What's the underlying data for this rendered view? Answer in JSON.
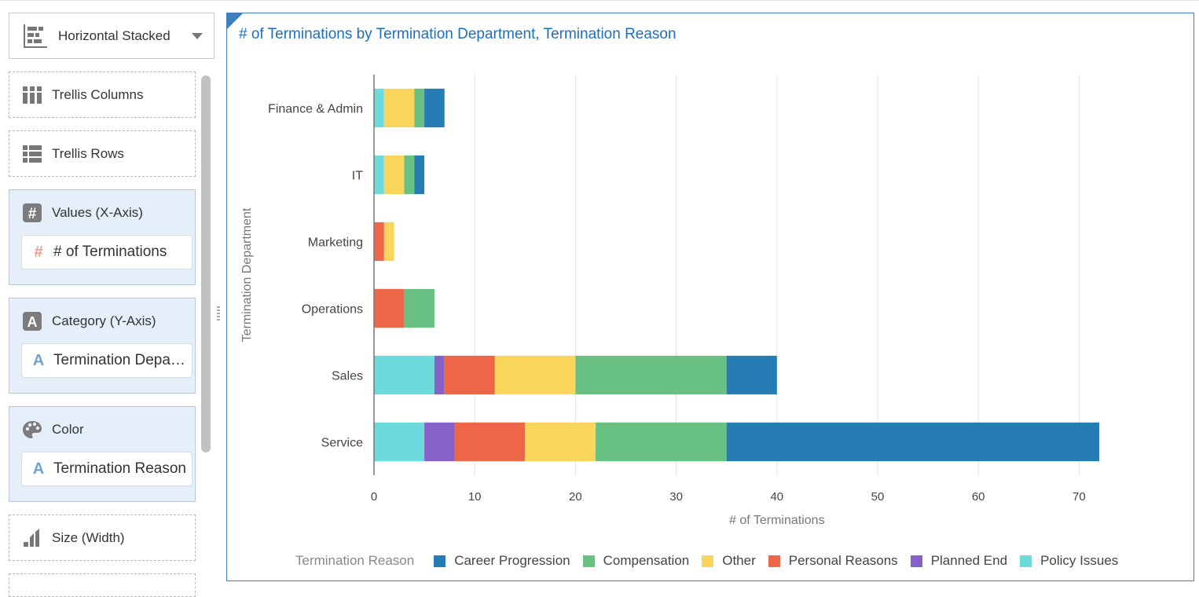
{
  "toolbar": {
    "chart_type_label": "Horizontal Stacked"
  },
  "grammar": {
    "trellis_columns": "Trellis Columns",
    "trellis_rows": "Trellis Rows",
    "values_label": "Values (X-Axis)",
    "values_pill": "# of Terminations",
    "category_label": "Category (Y-Axis)",
    "category_pill": "Termination Department",
    "color_label": "Color",
    "color_pill": "Termination Reason",
    "size_label": "Size (Width)"
  },
  "chart_data": {
    "type": "bar",
    "orientation": "horizontal",
    "stacked": true,
    "title": "# of Terminations by Termination Department, Termination Reason",
    "xlabel": "# of Terminations",
    "ylabel": "Termination Department",
    "xlim": [
      0,
      75
    ],
    "xticks": [
      0,
      10,
      20,
      30,
      40,
      50,
      60,
      70
    ],
    "grid": true,
    "legend_title": "Termination Reason",
    "legend_position": "bottom",
    "categories": [
      "Finance & Admin",
      "IT",
      "Marketing",
      "Operations",
      "Sales",
      "Service"
    ],
    "series": [
      {
        "name": "Policy Issues",
        "color": "#6ddbdb",
        "values": [
          1,
          1,
          0,
          0,
          6,
          5
        ]
      },
      {
        "name": "Planned End",
        "color": "#8561c8",
        "values": [
          0,
          0,
          0,
          0,
          1,
          3
        ]
      },
      {
        "name": "Personal Reasons",
        "color": "#ed6647",
        "values": [
          0,
          0,
          1,
          3,
          5,
          7
        ]
      },
      {
        "name": "Other",
        "color": "#fad55c",
        "values": [
          3,
          2,
          1,
          0,
          8,
          7
        ]
      },
      {
        "name": "Compensation",
        "color": "#68c182",
        "values": [
          1,
          1,
          0,
          3,
          15,
          13
        ]
      },
      {
        "name": "Career Progression",
        "color": "#267db3",
        "values": [
          2,
          1,
          0,
          0,
          5,
          37
        ]
      }
    ],
    "legend_order": [
      "Career Progression",
      "Compensation",
      "Other",
      "Personal Reasons",
      "Planned End",
      "Policy Issues"
    ]
  }
}
